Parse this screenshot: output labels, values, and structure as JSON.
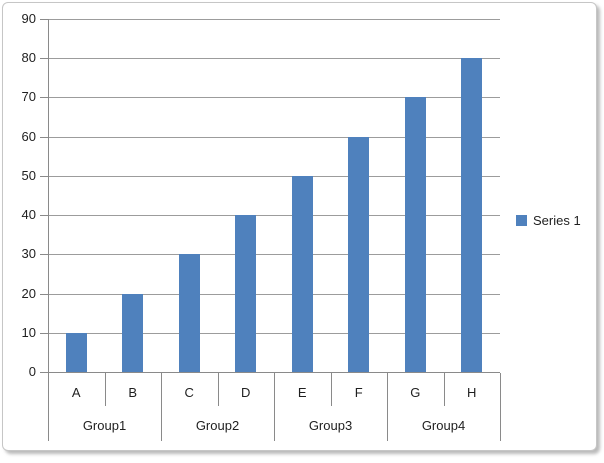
{
  "chart_data": {
    "type": "bar",
    "title": "",
    "xlabel": "",
    "ylabel": "",
    "categories": [
      "A",
      "B",
      "C",
      "D",
      "E",
      "F",
      "G",
      "H"
    ],
    "category_groups": [
      {
        "label": "Group1",
        "span": 2
      },
      {
        "label": "Group2",
        "span": 2
      },
      {
        "label": "Group3",
        "span": 2
      },
      {
        "label": "Group4",
        "span": 2
      }
    ],
    "series": [
      {
        "name": "Series 1",
        "values": [
          10,
          20,
          30,
          40,
          50,
          60,
          70,
          80
        ],
        "color": "#4F81BD"
      }
    ],
    "ylim": [
      0,
      90
    ],
    "yticks": [
      0,
      10,
      20,
      30,
      40,
      50,
      60,
      70,
      80,
      90
    ],
    "grid": true,
    "legend_position": "right"
  },
  "colors": {
    "bar": "#4F81BD",
    "gridline": "#9c9c9c",
    "axis": "#8a8a8a",
    "text": "#1f1f1f",
    "frame_border": "#c6c6c6"
  }
}
